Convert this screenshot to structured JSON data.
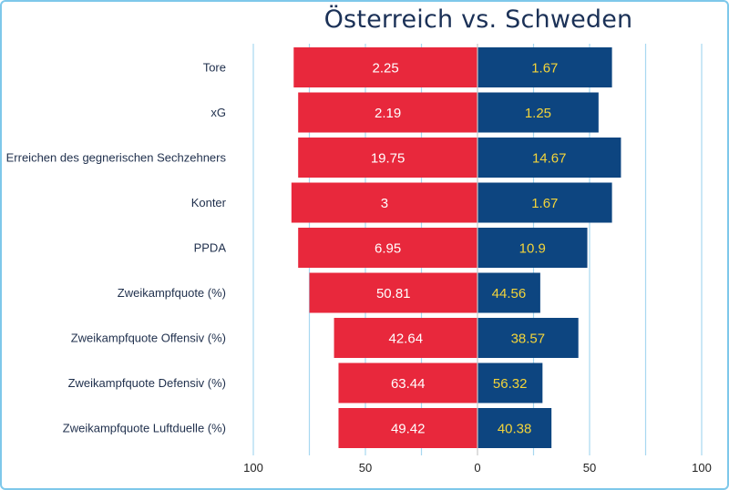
{
  "chart_data": {
    "type": "bar",
    "orientation": "horizontal-diverging",
    "title": "Österreich vs. Schweden",
    "categories": [
      "Tore",
      "xG",
      "Erreichen des gegnerischen Sechzehners",
      "Konter",
      "PPDA",
      "Zweikampfquote (%)",
      "Zweikampfquote Offensiv (%)",
      "Zweikampfquote Defensiv (%)",
      "Zweikampfquote Luftduelle (%)"
    ],
    "series": [
      {
        "name": "Österreich",
        "side": "left",
        "color": "#e8283c",
        "label_color": "#ffffff",
        "labels": [
          "2.25",
          "2.19",
          "19.75",
          "3",
          "6.95",
          "50.81",
          "42.64",
          "63.44",
          "49.42"
        ],
        "scaled": [
          82,
          80,
          80,
          83,
          80,
          75,
          64,
          62,
          62
        ]
      },
      {
        "name": "Schweden",
        "side": "right",
        "color": "#0d4580",
        "label_color": "#f3d43a",
        "labels": [
          "1.67",
          "1.25",
          "14.67",
          "1.67",
          "10.9",
          "44.56",
          "38.57",
          "56.32",
          "40.38"
        ],
        "scaled": [
          60,
          54,
          64,
          60,
          49,
          28,
          45,
          29,
          33
        ]
      }
    ],
    "x_ticks": [
      {
        "value": -100,
        "label": "100"
      },
      {
        "value": -50,
        "label": "50"
      },
      {
        "value": 0,
        "label": "0"
      },
      {
        "value": 50,
        "label": "50"
      },
      {
        "value": 100,
        "label": "100"
      }
    ],
    "xlim": [
      -100,
      100
    ],
    "gridlines": [
      -100,
      -75,
      -50,
      -25,
      25,
      50,
      75,
      100
    ],
    "grid": true,
    "grid_color": "#a8d8f0",
    "legend": "none"
  }
}
